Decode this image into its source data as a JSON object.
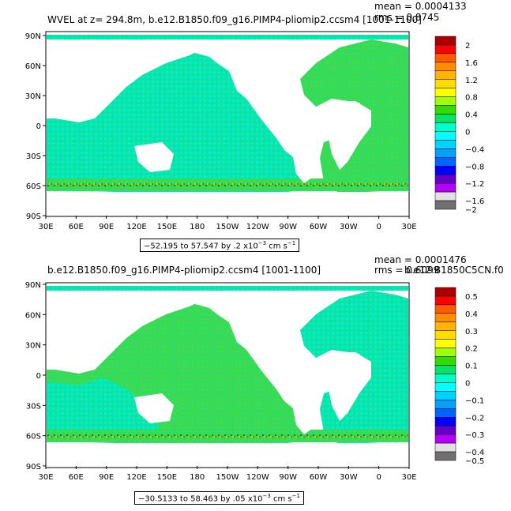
{
  "chart_data": [
    {
      "type": "heatmap",
      "title": "WVEL at z= 294.8m, b.e12.B1850.f09_g16.PIMP4-pliomip2.ccsm4 [1001-1100]",
      "stats": {
        "mean": "mean = 0.0004133",
        "rms": "rms = 0.8745"
      },
      "range_label_main": "−52.195 to 57.547 by .2 x10",
      "range_label_exp": "−3",
      "range_label_unit": " cm s",
      "range_label_unit_exp": "−1",
      "x_ticks": [
        "30E",
        "60E",
        "90E",
        "120E",
        "150E",
        "180",
        "150W",
        "120W",
        "90W",
        "60W",
        "30W",
        "0",
        "30E"
      ],
      "y_ticks": [
        "90N",
        "60N",
        "30N",
        "0",
        "30S",
        "60S",
        "90S"
      ],
      "colorbar": {
        "labels": [
          "2",
          "1.6",
          "1.2",
          "0.8",
          "0.4",
          "0",
          "−0.4",
          "−0.8",
          "−1.2",
          "−1.6",
          "−2"
        ],
        "colors": [
          "#aa0000",
          "#ff0000",
          "#ff5a00",
          "#ff8c00",
          "#ffb400",
          "#ffdc00",
          "#ffff00",
          "#a0ff00",
          "#32dc00",
          "#00e664",
          "#00ffc8",
          "#00ffff",
          "#00d2ff",
          "#00a0ff",
          "#0064ff",
          "#0000ff",
          "#6400c8",
          "#b400ff",
          "#e1e1e1",
          "#707070"
        ]
      }
    },
    {
      "type": "heatmap",
      "title": "b.e12.B1850.f09_g16.PIMP4-pliomip2.ccsm4 [1001-1100]",
      "stats": {
        "mean": "mean = 0.0001476",
        "rms": "rms = 0.6099"
      },
      "overlap_label": "b.e12.B1850C5CN.f0",
      "range_label_main": "−30.5133 to 58.463 by .05 x10",
      "range_label_exp": "−3",
      "range_label_unit": " cm s",
      "range_label_unit_exp": "−1",
      "x_ticks": [
        "30E",
        "60E",
        "90E",
        "120E",
        "150E",
        "180",
        "150W",
        "120W",
        "90W",
        "60W",
        "30W",
        "0",
        "30E"
      ],
      "y_ticks": [
        "90N",
        "60N",
        "30N",
        "0",
        "30S",
        "60S",
        "90S"
      ],
      "colorbar": {
        "labels": [
          "0.5",
          "0.4",
          "0.3",
          "0.2",
          "0.1",
          "0",
          "−0.1",
          "−0.2",
          "−0.3",
          "−0.4",
          "−0.5"
        ],
        "colors": [
          "#aa0000",
          "#ff0000",
          "#ff5a00",
          "#ff8c00",
          "#ffb400",
          "#ffdc00",
          "#ffff00",
          "#a0ff00",
          "#32dc00",
          "#00e664",
          "#00ffc8",
          "#00ffff",
          "#00d2ff",
          "#00a0ff",
          "#0064ff",
          "#0000ff",
          "#6400c8",
          "#b400ff",
          "#e1e1e1",
          "#707070"
        ]
      }
    }
  ]
}
